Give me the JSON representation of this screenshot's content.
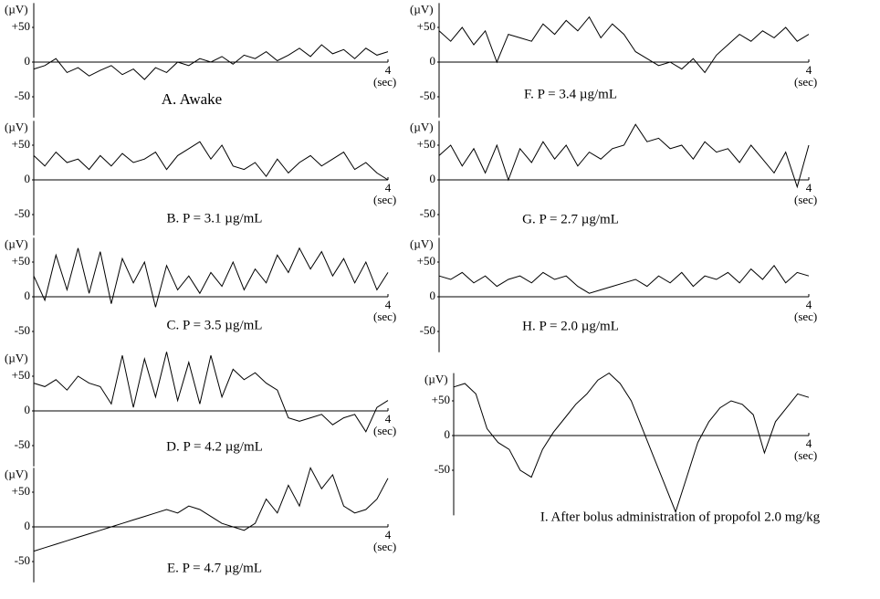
{
  "chart_data": [
    {
      "type": "line",
      "title": "A. Awake",
      "y_label": "(µV)",
      "x_label": "(sec)",
      "color": "#000000",
      "x": [
        0,
        0.125,
        0.25,
        0.375,
        0.5,
        0.625,
        0.75,
        0.875,
        1,
        1.125,
        1.25,
        1.375,
        1.5,
        1.625,
        1.75,
        1.875,
        2,
        2.125,
        2.25,
        2.375,
        2.5,
        2.625,
        2.75,
        2.875,
        3,
        3.125,
        3.25,
        3.375,
        3.5,
        3.625,
        3.75,
        3.875,
        4
      ],
      "values": [
        -10,
        -5,
        5,
        -15,
        -8,
        -20,
        -12,
        -5,
        -18,
        -10,
        -25,
        -8,
        -15,
        0,
        -5,
        5,
        0,
        8,
        -3,
        10,
        5,
        15,
        2,
        10,
        20,
        8,
        25,
        12,
        18,
        5,
        20,
        10,
        15
      ],
      "xlim": [
        0,
        4
      ],
      "xticks": [
        4
      ],
      "ylim": [
        -80,
        85
      ],
      "yticks": [
        {
          "value": 50,
          "label": "+50"
        },
        0,
        -50
      ]
    },
    {
      "type": "line",
      "title": "B. P = 3.1 µg/mL",
      "y_label": "(µV)",
      "x_label": "(sec)",
      "color": "#000000",
      "x": [
        0,
        0.125,
        0.25,
        0.375,
        0.5,
        0.625,
        0.75,
        0.875,
        1,
        1.125,
        1.25,
        1.375,
        1.5,
        1.625,
        1.75,
        1.875,
        2,
        2.125,
        2.25,
        2.375,
        2.5,
        2.625,
        2.75,
        2.875,
        3,
        3.125,
        3.25,
        3.375,
        3.5,
        3.625,
        3.75,
        3.875,
        4
      ],
      "values": [
        35,
        20,
        40,
        25,
        30,
        15,
        35,
        20,
        38,
        25,
        30,
        40,
        15,
        35,
        45,
        55,
        30,
        50,
        20,
        15,
        25,
        5,
        30,
        10,
        25,
        35,
        20,
        30,
        40,
        15,
        25,
        10,
        0
      ],
      "xlim": [
        0,
        4
      ],
      "xticks": [
        4
      ],
      "ylim": [
        -80,
        85
      ],
      "yticks": [
        {
          "value": 50,
          "label": "+50"
        },
        0,
        -50
      ]
    },
    {
      "type": "line",
      "title": "C. P = 3.5 µg/mL",
      "y_label": "(µV)",
      "x_label": "(sec)",
      "color": "#000000",
      "x": [
        0,
        0.125,
        0.25,
        0.375,
        0.5,
        0.625,
        0.75,
        0.875,
        1,
        1.125,
        1.25,
        1.375,
        1.5,
        1.625,
        1.75,
        1.875,
        2,
        2.125,
        2.25,
        2.375,
        2.5,
        2.625,
        2.75,
        2.875,
        3,
        3.125,
        3.25,
        3.375,
        3.5,
        3.625,
        3.75,
        3.875,
        4
      ],
      "values": [
        30,
        -5,
        60,
        10,
        70,
        5,
        65,
        -10,
        55,
        20,
        50,
        -15,
        45,
        10,
        30,
        5,
        35,
        15,
        50,
        10,
        40,
        20,
        60,
        35,
        70,
        40,
        65,
        30,
        55,
        20,
        50,
        10,
        35
      ],
      "xlim": [
        0,
        4
      ],
      "xticks": [
        4
      ],
      "ylim": [
        -80,
        85
      ],
      "yticks": [
        {
          "value": 50,
          "label": "+50"
        },
        0,
        -50
      ]
    },
    {
      "type": "line",
      "title": "D. P = 4.2 µg/mL",
      "y_label": "(µV)",
      "x_label": "(sec)",
      "color": "#000000",
      "x": [
        0,
        0.125,
        0.25,
        0.375,
        0.5,
        0.625,
        0.75,
        0.875,
        1,
        1.125,
        1.25,
        1.375,
        1.5,
        1.625,
        1.75,
        1.875,
        2,
        2.125,
        2.25,
        2.375,
        2.5,
        2.625,
        2.75,
        2.875,
        3,
        3.125,
        3.25,
        3.375,
        3.5,
        3.625,
        3.75,
        3.875,
        4
      ],
      "values": [
        40,
        35,
        45,
        30,
        50,
        40,
        35,
        10,
        80,
        5,
        75,
        20,
        85,
        15,
        70,
        10,
        80,
        20,
        60,
        45,
        55,
        40,
        30,
        -10,
        -15,
        -10,
        -5,
        -20,
        -10,
        -5,
        -30,
        5,
        15
      ],
      "xlim": [
        0,
        4
      ],
      "xticks": [
        4
      ],
      "ylim": [
        -80,
        85
      ],
      "yticks": [
        {
          "value": 50,
          "label": "+50"
        },
        0,
        -50
      ]
    },
    {
      "type": "line",
      "title": "E. P = 4.7 µg/mL",
      "y_label": "(µV)",
      "x_label": "(sec)",
      "color": "#000000",
      "x": [
        0,
        0.125,
        0.25,
        0.375,
        0.5,
        0.625,
        0.75,
        0.875,
        1,
        1.125,
        1.25,
        1.375,
        1.5,
        1.625,
        1.75,
        1.875,
        2,
        2.125,
        2.25,
        2.375,
        2.5,
        2.625,
        2.75,
        2.875,
        3,
        3.125,
        3.25,
        3.375,
        3.5,
        3.625,
        3.75,
        3.875,
        4
      ],
      "values": [
        -35,
        -30,
        -25,
        -20,
        -15,
        -10,
        -5,
        0,
        5,
        10,
        15,
        20,
        25,
        20,
        30,
        25,
        15,
        5,
        0,
        -5,
        5,
        40,
        20,
        60,
        30,
        85,
        55,
        75,
        30,
        20,
        25,
        40,
        70
      ],
      "xlim": [
        0,
        4
      ],
      "xticks": [
        4
      ],
      "ylim": [
        -80,
        85
      ],
      "yticks": [
        {
          "value": 50,
          "label": "+50"
        },
        0,
        -50
      ]
    },
    {
      "type": "line",
      "title": "F. P = 3.4 µg/mL",
      "y_label": "(µV)",
      "x_label": "(sec)",
      "color": "#000000",
      "x": [
        0,
        0.125,
        0.25,
        0.375,
        0.5,
        0.625,
        0.75,
        0.875,
        1,
        1.125,
        1.25,
        1.375,
        1.5,
        1.625,
        1.75,
        1.875,
        2,
        2.125,
        2.25,
        2.375,
        2.5,
        2.625,
        2.75,
        2.875,
        3,
        3.125,
        3.25,
        3.375,
        3.5,
        3.625,
        3.75,
        3.875,
        4
      ],
      "values": [
        45,
        30,
        50,
        25,
        45,
        0,
        40,
        35,
        30,
        55,
        40,
        60,
        45,
        65,
        35,
        55,
        40,
        15,
        5,
        -5,
        0,
        -10,
        5,
        -15,
        10,
        25,
        40,
        30,
        45,
        35,
        50,
        30,
        40
      ],
      "xlim": [
        0,
        4
      ],
      "xticks": [
        4
      ],
      "ylim": [
        -80,
        85
      ],
      "yticks": [
        {
          "value": 50,
          "label": "+50"
        },
        0,
        -50
      ]
    },
    {
      "type": "line",
      "title": "G. P = 2.7 µg/mL",
      "y_label": "(µV)",
      "x_label": "(sec)",
      "color": "#000000",
      "x": [
        0,
        0.125,
        0.25,
        0.375,
        0.5,
        0.625,
        0.75,
        0.875,
        1,
        1.125,
        1.25,
        1.375,
        1.5,
        1.625,
        1.75,
        1.875,
        2,
        2.125,
        2.25,
        2.375,
        2.5,
        2.625,
        2.75,
        2.875,
        3,
        3.125,
        3.25,
        3.375,
        3.5,
        3.625,
        3.75,
        3.875,
        4
      ],
      "values": [
        35,
        50,
        20,
        45,
        10,
        50,
        0,
        45,
        25,
        55,
        30,
        50,
        20,
        40,
        30,
        45,
        50,
        80,
        55,
        60,
        45,
        50,
        30,
        55,
        40,
        45,
        25,
        50,
        30,
        10,
        40,
        -10,
        50
      ],
      "xlim": [
        0,
        4
      ],
      "xticks": [
        4
      ],
      "ylim": [
        -80,
        85
      ],
      "yticks": [
        {
          "value": 50,
          "label": "+50"
        },
        0,
        -50
      ]
    },
    {
      "type": "line",
      "title": "H. P = 2.0 µg/mL",
      "y_label": "(µV)",
      "x_label": "(sec)",
      "color": "#000000",
      "x": [
        0,
        0.125,
        0.25,
        0.375,
        0.5,
        0.625,
        0.75,
        0.875,
        1,
        1.125,
        1.25,
        1.375,
        1.5,
        1.625,
        1.75,
        1.875,
        2,
        2.125,
        2.25,
        2.375,
        2.5,
        2.625,
        2.75,
        2.875,
        3,
        3.125,
        3.25,
        3.375,
        3.5,
        3.625,
        3.75,
        3.875,
        4
      ],
      "values": [
        30,
        25,
        35,
        20,
        30,
        15,
        25,
        30,
        20,
        35,
        25,
        30,
        15,
        5,
        10,
        15,
        20,
        25,
        15,
        30,
        20,
        35,
        15,
        30,
        25,
        35,
        20,
        40,
        25,
        45,
        20,
        35,
        30
      ],
      "xlim": [
        0,
        4
      ],
      "xticks": [
        4
      ],
      "ylim": [
        -80,
        85
      ],
      "yticks": [
        {
          "value": 50,
          "label": "+50"
        },
        0,
        -50
      ]
    },
    {
      "type": "line",
      "title": "I. After bolus administration of propofol 2.0 mg/kg",
      "y_label": "(µV)",
      "x_label": "(sec)",
      "color": "#000000",
      "x": [
        0,
        0.125,
        0.25,
        0.375,
        0.5,
        0.625,
        0.75,
        0.875,
        1,
        1.125,
        1.25,
        1.375,
        1.5,
        1.625,
        1.75,
        1.875,
        2,
        2.125,
        2.25,
        2.375,
        2.5,
        2.625,
        2.75,
        2.875,
        3,
        3.125,
        3.25,
        3.375,
        3.5,
        3.625,
        3.75,
        3.875,
        4
      ],
      "values": [
        70,
        75,
        60,
        10,
        -10,
        -20,
        -50,
        -60,
        -20,
        5,
        25,
        45,
        60,
        80,
        90,
        75,
        50,
        10,
        -30,
        -70,
        -110,
        -60,
        -10,
        20,
        40,
        50,
        45,
        30,
        -25,
        20,
        40,
        60,
        55
      ],
      "xlim": [
        0,
        4
      ],
      "xticks": [
        4
      ],
      "ylim": [
        -115,
        90
      ],
      "yticks": [
        {
          "value": 50,
          "label": "+50"
        },
        0,
        -50
      ]
    }
  ]
}
